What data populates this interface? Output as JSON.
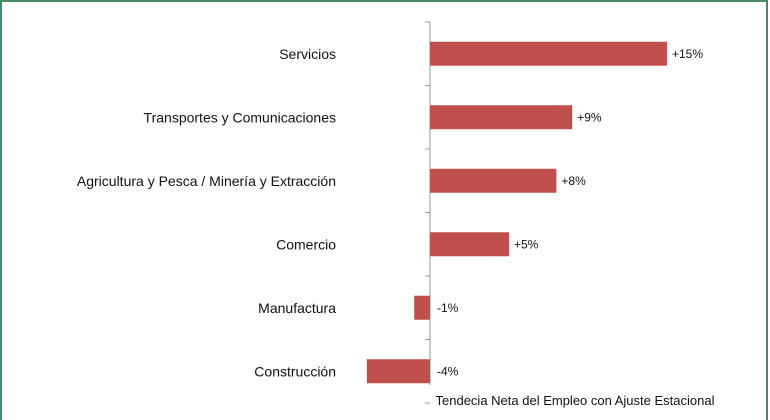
{
  "chart_data": {
    "type": "bar",
    "orientation": "horizontal",
    "categories": [
      "Servicios",
      "Transportes y Comunicaciones",
      "Agricultura y Pesca / Minería y Extracción",
      "Comercio",
      "Manufactura",
      "Construcción"
    ],
    "values": [
      15,
      9,
      8,
      5,
      -1,
      -4
    ],
    "data_labels": [
      "+15%",
      "+9%",
      "+8%",
      "+5%",
      "-1%",
      "-4%"
    ],
    "xlabel": "Tendecia Neta del Empleo con Ajuste Estacional",
    "ylabel": "",
    "title": "",
    "bar_color": "#c0504d",
    "frame_color": "#4a8a6a",
    "grid": false,
    "legend": "none"
  }
}
